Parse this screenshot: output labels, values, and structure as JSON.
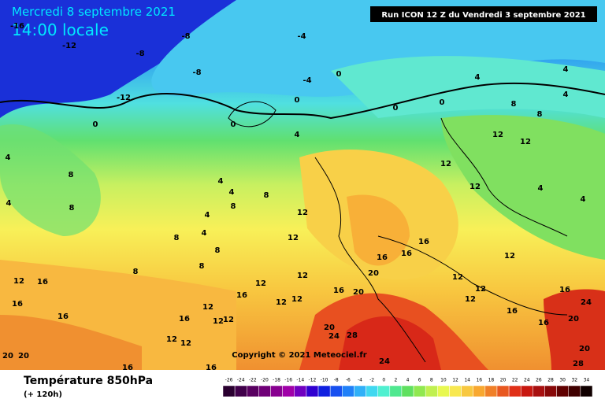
{
  "header": {
    "date": "Mercredi 8 septembre 2021",
    "time": "14:00 locale",
    "run": "Run ICON 12 Z du Vendredi 3 septembre 2021"
  },
  "copyright": "Copyright © 2021 Meteociel.fr",
  "legend": {
    "title": "Température 850hPa",
    "lead": "(+ 120h)",
    "ticks": [
      -26,
      -24,
      -22,
      -20,
      -18,
      -16,
      -14,
      -12,
      -10,
      -8,
      -6,
      -4,
      -2,
      0,
      2,
      4,
      6,
      8,
      10,
      12,
      14,
      16,
      18,
      20,
      22,
      24,
      26,
      28,
      30,
      32,
      34
    ],
    "colors": [
      "#2a0030",
      "#40004a",
      "#580060",
      "#700078",
      "#880090",
      "#a000a8",
      "#7000c0",
      "#3000d0",
      "#1020e0",
      "#1850f0",
      "#2080f8",
      "#30b0f8",
      "#40d8f0",
      "#50f0d0",
      "#50e890",
      "#60e060",
      "#90e850",
      "#c0f050",
      "#e8f850",
      "#f8e850",
      "#f8c840",
      "#f8a830",
      "#f08028",
      "#e85820",
      "#e03018",
      "#c81810",
      "#a81010",
      "#880808",
      "#600000",
      "#400000",
      "#100000"
    ]
  },
  "contour_labels": [
    -16,
    -12,
    -8,
    -8,
    -8,
    -4,
    -4,
    0,
    -12,
    0,
    0,
    0,
    0,
    0,
    4,
    4,
    4,
    4,
    8,
    8,
    4,
    8,
    4,
    4,
    8,
    4,
    8,
    4,
    8,
    4,
    8,
    8,
    12,
    12,
    8,
    8,
    12,
    16,
    16,
    16,
    12,
    16,
    12,
    12,
    16,
    20,
    20,
    16,
    16,
    12,
    12,
    12,
    12,
    12,
    12,
    4,
    4,
    12,
    16,
    16,
    12,
    12,
    12,
    12,
    12,
    20,
    24,
    28,
    24,
    20,
    20,
    16,
    16,
    16,
    20,
    24,
    20,
    28,
    12,
    12,
    16,
    16
  ]
}
